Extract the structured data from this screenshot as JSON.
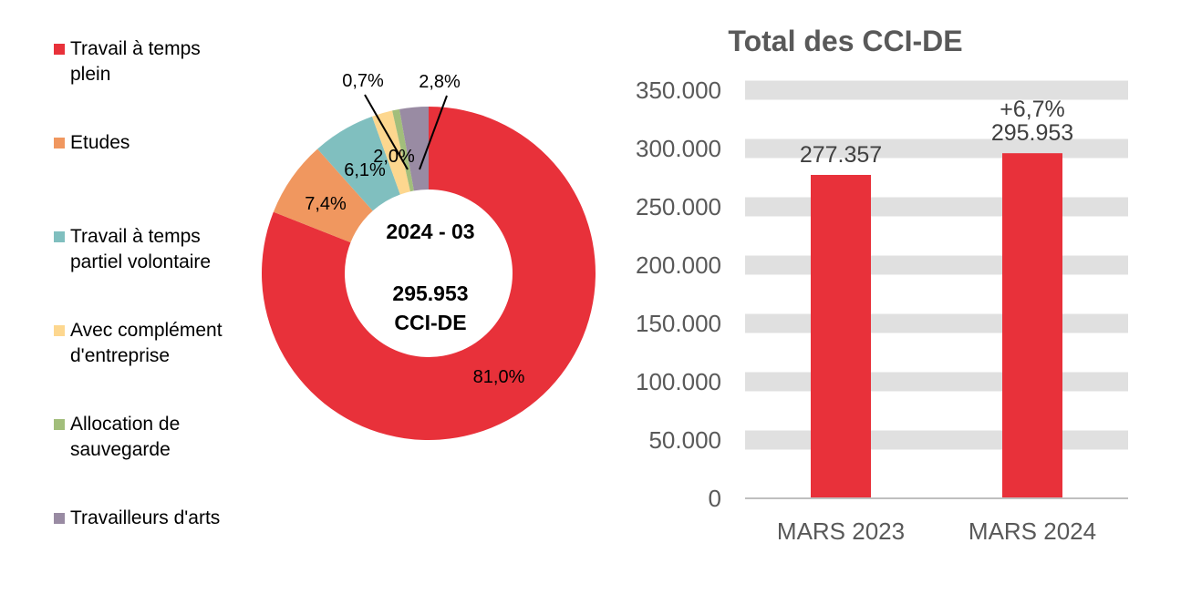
{
  "chart_data": [
    {
      "type": "pie",
      "variant": "donut",
      "center_text": {
        "period": "2024 - 03",
        "total": "295.953",
        "unit": "CCI-DE"
      },
      "legend_position": "left",
      "slices": [
        {
          "name": "Travail à temps plein",
          "value": 81.0,
          "label": "81,0%",
          "color": "#E8313A"
        },
        {
          "name": "Etudes",
          "value": 7.4,
          "label": "7,4%",
          "color": "#F0975F"
        },
        {
          "name": "Travail à temps partiel volontaire",
          "value": 6.1,
          "label": "6,1%",
          "color": "#80BFBF"
        },
        {
          "name": "Avec complément d'entreprise",
          "value": 2.0,
          "label": "2,0%",
          "color": "#FDD78F"
        },
        {
          "name": "Allocation de sauvegarde",
          "value": 0.7,
          "label": "0,7%",
          "color": "#A2BE7B"
        },
        {
          "name": "Travailleurs d'arts",
          "value": 2.8,
          "label": "2,8%",
          "color": "#998BA3"
        }
      ]
    },
    {
      "type": "bar",
      "title": "Total des CCI-DE",
      "categories": [
        "MARS 2023",
        "MARS 2024"
      ],
      "values": [
        277357,
        295953
      ],
      "data_labels": [
        "277.357",
        "295.953"
      ],
      "annotations": [
        "",
        "+6,7%"
      ],
      "ylim": [
        0,
        350000
      ],
      "yticks": [
        "0",
        "50.000",
        "100.000",
        "150.000",
        "200.000",
        "250.000",
        "300.000",
        "350.000"
      ],
      "grid": true,
      "bar_color": "#E8313A",
      "grid_color": "#E0E0E0"
    }
  ]
}
